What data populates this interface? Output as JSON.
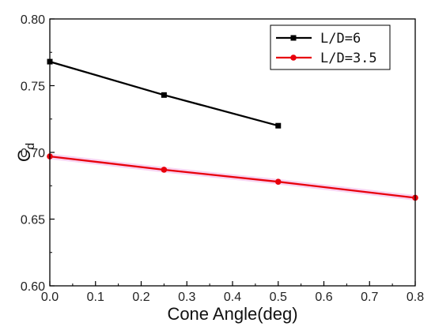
{
  "chart_data": {
    "type": "line",
    "title": "",
    "xlabel": "Cone Angle(deg)",
    "ylabel_main": "C",
    "ylabel_sub": "d",
    "xlim": [
      0.0,
      0.8
    ],
    "ylim": [
      0.6,
      0.8
    ],
    "x_ticks": [
      "0.0",
      "0.1",
      "0.2",
      "0.3",
      "0.4",
      "0.5",
      "0.6",
      "0.7",
      "0.8"
    ],
    "y_ticks": [
      "0.60",
      "0.65",
      "0.70",
      "0.75",
      "0.80"
    ],
    "grid": false,
    "legend_position": "top-right",
    "series": [
      {
        "name": "L/D=6",
        "color": "#000000",
        "marker": "square",
        "x": [
          0.0,
          0.25,
          0.5
        ],
        "y": [
          0.768,
          0.743,
          0.72
        ]
      },
      {
        "name": "L/D=3.5",
        "color": "#e8000b",
        "marker": "circle",
        "x": [
          0.0,
          0.25,
          0.5,
          0.8
        ],
        "y": [
          0.697,
          0.687,
          0.678,
          0.666
        ]
      }
    ]
  }
}
